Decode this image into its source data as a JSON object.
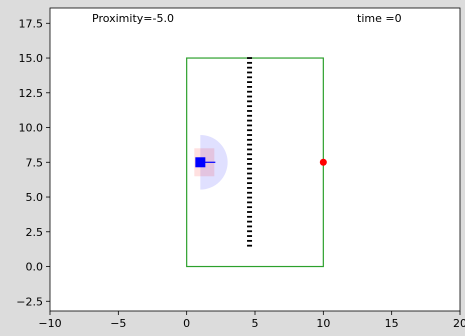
{
  "annotations": {
    "proximity": "Proximity=-5.0",
    "time": "time =0"
  },
  "chart_data": {
    "type": "scatter",
    "title": "",
    "xlabel": "",
    "ylabel": "",
    "xlim": [
      -10,
      20
    ],
    "ylim": [
      -3.2,
      18.6
    ],
    "x_ticks": [
      -10,
      -5,
      0,
      5,
      10,
      15,
      20
    ],
    "x_tick_labels": [
      "−10",
      "−5",
      "0",
      "5",
      "10",
      "15",
      "20"
    ],
    "y_ticks": [
      -2.5,
      0.0,
      2.5,
      5.0,
      7.5,
      10.0,
      12.5,
      15.0,
      17.5
    ],
    "y_tick_labels": [
      "−2.5",
      "0.0",
      "2.5",
      "5.0",
      "7.5",
      "10.0",
      "12.5",
      "15.0",
      "17.5"
    ],
    "grid": false,
    "arena": {
      "x": [
        0,
        10
      ],
      "y": [
        0,
        15
      ],
      "color": "#2ca02c"
    },
    "barrier": {
      "x": 4.6,
      "y_start": 1.5,
      "y_end": 15.0,
      "segments": 40,
      "color": "#000000"
    },
    "goal": {
      "x": 10,
      "y": 7.5,
      "color": "#ff0000"
    },
    "agent": {
      "x": 1.0,
      "y": 7.5,
      "heading_deg": 0,
      "color": "#0000ff",
      "sensor_radius": 2.0,
      "sensor_color": "#0000ff",
      "body_halo_color": "#ff0000"
    }
  }
}
